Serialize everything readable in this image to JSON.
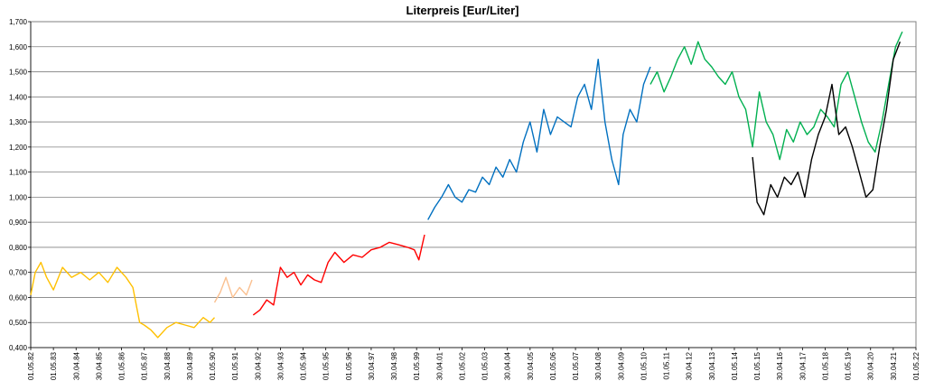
{
  "chart_data": {
    "type": "line",
    "title": "Literpreis [Eur/Liter]",
    "xlabel": "",
    "ylabel": "",
    "ylim": [
      0.4,
      1.7
    ],
    "y_ticks": [
      "0,400",
      "0,500",
      "0,600",
      "0,700",
      "0,800",
      "0,900",
      "1,000",
      "1,100",
      "1,200",
      "1,300",
      "1,400",
      "1,500",
      "1,600",
      "1,700"
    ],
    "x_ticks": [
      "01.05.82",
      "01.05.83",
      "30.04.84",
      "30.04.85",
      "01.05.86",
      "01.05.87",
      "30.04.88",
      "30.04.89",
      "01.05.90",
      "01.05.91",
      "30.04.92",
      "30.04.93",
      "01.05.94",
      "01.05.95",
      "01.05.96",
      "30.04.97",
      "30.04.98",
      "01.05.99",
      "30.04.01",
      "01.05.02",
      "01.05.03",
      "30.04.04",
      "30.04.05",
      "01.05.06",
      "01.05.07",
      "30.04.08",
      "30.04.09",
      "01.05.10",
      "01.05.11",
      "30.04.12",
      "30.04.13",
      "01.05.14",
      "01.05.15",
      "30.04.16",
      "30.04.17",
      "01.05.18",
      "01.05.19",
      "30.04.20",
      "30.04.21",
      "01.05.22"
    ],
    "grid": true,
    "legend": "none",
    "series": [
      {
        "color": "#ffc000",
        "x": [
          0,
          0.2,
          0.45,
          0.7,
          1.0,
          1.4,
          1.8,
          2.2,
          2.6,
          3.0,
          3.4,
          3.8,
          4.2,
          4.5,
          4.8,
          5.0,
          5.3,
          5.6,
          6.0,
          6.4,
          6.8,
          7.2,
          7.6,
          7.9,
          8.1
        ],
        "y": [
          0.61,
          0.7,
          0.74,
          0.68,
          0.63,
          0.72,
          0.68,
          0.7,
          0.67,
          0.7,
          0.66,
          0.72,
          0.68,
          0.64,
          0.5,
          0.49,
          0.47,
          0.44,
          0.48,
          0.5,
          0.49,
          0.48,
          0.52,
          0.5,
          0.52
        ]
      },
      {
        "color": "#fac090",
        "x": [
          8.1,
          8.35,
          8.6,
          8.9,
          9.2,
          9.5,
          9.75
        ],
        "y": [
          0.58,
          0.62,
          0.68,
          0.6,
          0.64,
          0.61,
          0.67
        ]
      },
      {
        "color": "#ff0000",
        "x": [
          9.8,
          10.1,
          10.4,
          10.7,
          11.0,
          11.3,
          11.6,
          11.9,
          12.2,
          12.5,
          12.8,
          13.1,
          13.4,
          13.8,
          14.2,
          14.6,
          15.0,
          15.4,
          15.8,
          16.2,
          16.6,
          16.9,
          17.1,
          17.35
        ],
        "y": [
          0.53,
          0.55,
          0.59,
          0.57,
          0.72,
          0.68,
          0.7,
          0.65,
          0.69,
          0.67,
          0.66,
          0.74,
          0.78,
          0.74,
          0.77,
          0.76,
          0.79,
          0.8,
          0.82,
          0.81,
          0.8,
          0.79,
          0.75,
          0.85
        ]
      },
      {
        "color": "#0070c0",
        "x": [
          17.5,
          17.8,
          18.1,
          18.4,
          18.7,
          19.0,
          19.3,
          19.6,
          19.9,
          20.2,
          20.5,
          20.8,
          21.1,
          21.4,
          21.7,
          22.0,
          22.3,
          22.6,
          22.9,
          23.2,
          23.5,
          23.8,
          24.1,
          24.4,
          24.7,
          25.0,
          25.3,
          25.6,
          25.9,
          26.1,
          26.4,
          26.7,
          27.0,
          27.3
        ],
        "y": [
          0.91,
          0.96,
          1.0,
          1.05,
          1.0,
          0.98,
          1.03,
          1.02,
          1.08,
          1.05,
          1.12,
          1.08,
          1.15,
          1.1,
          1.22,
          1.3,
          1.18,
          1.35,
          1.25,
          1.32,
          1.3,
          1.28,
          1.4,
          1.45,
          1.35,
          1.55,
          1.3,
          1.15,
          1.05,
          1.25,
          1.35,
          1.3,
          1.45,
          1.52
        ]
      },
      {
        "color": "#00b050",
        "x": [
          27.3,
          27.6,
          27.9,
          28.2,
          28.5,
          28.8,
          29.1,
          29.4,
          29.7,
          30.0,
          30.3,
          30.6,
          30.9,
          31.2,
          31.5,
          31.8,
          32.1,
          32.4,
          32.7,
          33.0,
          33.3,
          33.6,
          33.9,
          34.2,
          34.5,
          34.8,
          35.1,
          35.4,
          35.7,
          36.0,
          36.3,
          36.6,
          36.9,
          37.2,
          37.5,
          37.8,
          38.1,
          38.4
        ],
        "y": [
          1.45,
          1.5,
          1.42,
          1.48,
          1.55,
          1.6,
          1.53,
          1.62,
          1.55,
          1.52,
          1.48,
          1.45,
          1.5,
          1.4,
          1.35,
          1.2,
          1.42,
          1.3,
          1.25,
          1.15,
          1.27,
          1.22,
          1.3,
          1.25,
          1.28,
          1.35,
          1.32,
          1.28,
          1.45,
          1.5,
          1.4,
          1.3,
          1.22,
          1.18,
          1.3,
          1.45,
          1.6,
          1.66
        ]
      },
      {
        "color": "#000000",
        "x": [
          31.8,
          32.0,
          32.3,
          32.6,
          32.9,
          33.2,
          33.5,
          33.8,
          34.1,
          34.4,
          34.7,
          35.0,
          35.3,
          35.6,
          35.9,
          36.2,
          36.5,
          36.8,
          37.1,
          37.4,
          37.7,
          38.0,
          38.3
        ],
        "y": [
          1.16,
          0.98,
          0.93,
          1.05,
          1.0,
          1.08,
          1.05,
          1.1,
          1.0,
          1.15,
          1.25,
          1.32,
          1.45,
          1.25,
          1.28,
          1.2,
          1.1,
          1.0,
          1.03,
          1.2,
          1.35,
          1.55,
          1.62
        ]
      }
    ]
  }
}
